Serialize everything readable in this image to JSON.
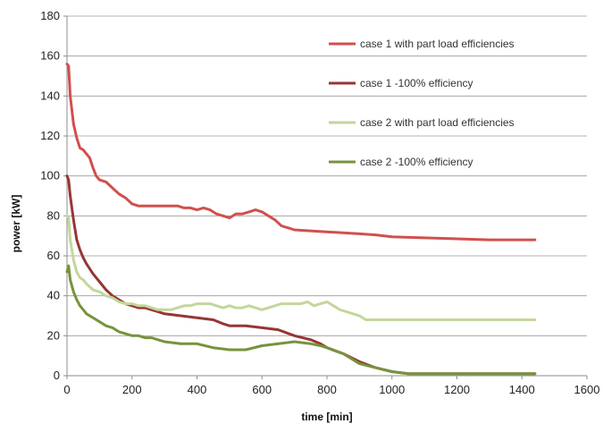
{
  "chart_data": {
    "type": "line",
    "title": "",
    "xlabel": "time [min]",
    "ylabel": "power [kW]",
    "xlim": [
      0,
      1600
    ],
    "ylim": [
      0,
      180
    ],
    "xticks": [
      0,
      200,
      400,
      600,
      800,
      1000,
      1200,
      1400,
      1600
    ],
    "yticks": [
      0,
      20,
      40,
      60,
      80,
      100,
      120,
      140,
      160,
      180
    ],
    "grid": "horizontal",
    "legend_position": "top-right",
    "series": [
      {
        "name": "case 1 with part load efficiencies",
        "color": "#d0504c",
        "x": [
          0,
          5,
          10,
          20,
          30,
          40,
          50,
          60,
          70,
          80,
          90,
          100,
          120,
          140,
          160,
          180,
          200,
          220,
          240,
          260,
          280,
          300,
          320,
          340,
          360,
          380,
          400,
          420,
          440,
          460,
          480,
          500,
          520,
          540,
          560,
          580,
          600,
          620,
          640,
          660,
          680,
          700,
          750,
          800,
          850,
          900,
          950,
          1000,
          1100,
          1200,
          1300,
          1440
        ],
        "y": [
          156,
          155,
          140,
          126,
          119,
          114,
          113,
          111,
          109,
          104,
          100,
          98,
          97,
          94,
          91,
          89,
          86,
          85,
          85,
          85,
          85,
          85,
          85,
          85,
          84,
          84,
          83,
          84,
          83,
          81,
          80,
          79,
          81,
          81,
          82,
          83,
          82,
          80,
          78,
          75,
          74,
          73,
          72.5,
          72,
          71.5,
          71,
          70.5,
          69.5,
          69,
          68.5,
          68,
          68
        ]
      },
      {
        "name": "case 1 -100% efficiency",
        "color": "#963634",
        "x": [
          0,
          5,
          10,
          20,
          30,
          40,
          50,
          60,
          80,
          100,
          120,
          140,
          160,
          180,
          200,
          220,
          240,
          260,
          280,
          300,
          350,
          400,
          450,
          480,
          500,
          550,
          600,
          650,
          700,
          750,
          780,
          800,
          850,
          900,
          950,
          1000,
          1050,
          1100,
          1200,
          1300,
          1440
        ],
        "y": [
          100,
          98,
          90,
          78,
          68,
          63,
          59,
          56,
          51,
          47,
          43,
          40,
          38,
          36,
          35,
          34,
          34,
          33,
          32,
          31,
          30,
          29,
          28,
          26,
          25,
          25,
          24,
          23,
          20,
          18,
          16,
          14,
          11,
          7,
          4,
          2,
          1,
          1,
          1,
          1,
          1
        ]
      },
      {
        "name": "case 2 with part load efficiencies",
        "color": "#c3d69b",
        "x": [
          0,
          5,
          10,
          20,
          30,
          40,
          50,
          60,
          80,
          100,
          120,
          140,
          160,
          180,
          200,
          220,
          240,
          260,
          280,
          300,
          320,
          340,
          360,
          380,
          400,
          420,
          440,
          460,
          480,
          500,
          520,
          540,
          560,
          580,
          600,
          620,
          640,
          660,
          680,
          700,
          720,
          740,
          760,
          780,
          800,
          820,
          840,
          860,
          880,
          900,
          920,
          940,
          960,
          1000,
          1100,
          1200,
          1300,
          1440
        ],
        "y": [
          80,
          79,
          68,
          58,
          52,
          49,
          48,
          46,
          43,
          42,
          40,
          39,
          37,
          36,
          36,
          35,
          35,
          34,
          33,
          33,
          33,
          34,
          35,
          35,
          36,
          36,
          36,
          35,
          34,
          35,
          34,
          34,
          35,
          34,
          33,
          34,
          35,
          36,
          36,
          36,
          36,
          37,
          35,
          36,
          37,
          35,
          33,
          32,
          31,
          30,
          28,
          28,
          28,
          28,
          28,
          28,
          28,
          28
        ]
      },
      {
        "name": "case 2 -100% efficiency",
        "color": "#77933c",
        "x": [
          0,
          5,
          10,
          20,
          30,
          40,
          50,
          60,
          80,
          100,
          120,
          140,
          160,
          180,
          200,
          220,
          240,
          260,
          280,
          300,
          350,
          400,
          450,
          500,
          550,
          600,
          650,
          700,
          750,
          780,
          800,
          850,
          900,
          950,
          1000,
          1050,
          1100,
          1200,
          1300,
          1440
        ],
        "y": [
          52,
          55,
          48,
          42,
          38,
          35,
          33,
          31,
          29,
          27,
          25,
          24,
          22,
          21,
          20,
          20,
          19,
          19,
          18,
          17,
          16,
          16,
          14,
          13,
          13,
          15,
          16,
          17,
          16,
          15,
          14,
          11,
          6,
          4,
          2,
          1,
          1,
          1,
          1,
          1
        ]
      }
    ]
  }
}
